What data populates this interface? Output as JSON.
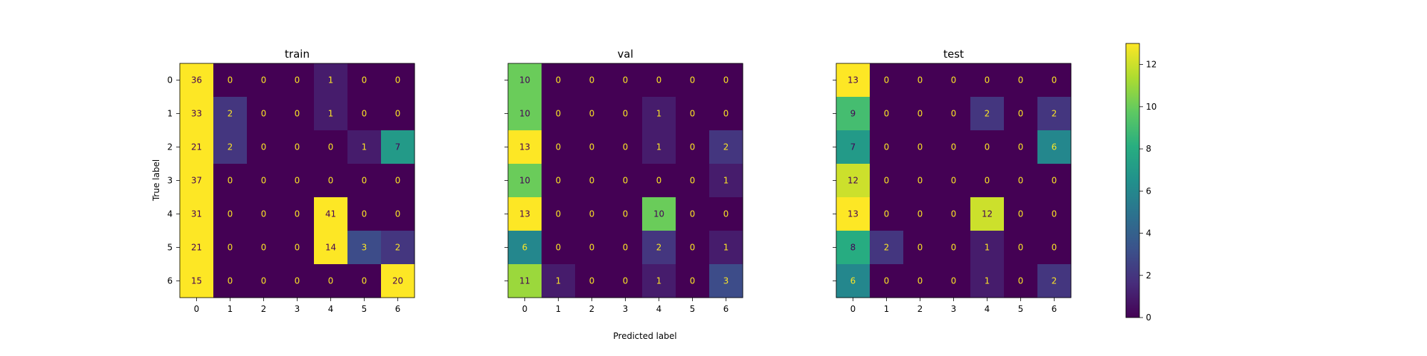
{
  "chart_data": {
    "type": "heatmap",
    "xlabel": "Predicted label",
    "ylabel": "True label",
    "class_labels": [
      "0",
      "1",
      "2",
      "3",
      "4",
      "5",
      "6"
    ],
    "colormap": "viridis",
    "colorbar": {
      "min": 0,
      "max": 13,
      "ticks": [
        0,
        2,
        4,
        6,
        8,
        10,
        12
      ]
    },
    "panels": [
      {
        "title": "train",
        "matrix": [
          [
            36,
            0,
            0,
            0,
            1,
            0,
            0
          ],
          [
            33,
            2,
            0,
            0,
            1,
            0,
            0
          ],
          [
            21,
            2,
            0,
            0,
            0,
            1,
            7
          ],
          [
            37,
            0,
            0,
            0,
            0,
            0,
            0
          ],
          [
            31,
            0,
            0,
            0,
            41,
            0,
            0
          ],
          [
            21,
            0,
            0,
            0,
            14,
            3,
            2
          ],
          [
            15,
            0,
            0,
            0,
            0,
            0,
            20
          ]
        ]
      },
      {
        "title": "val",
        "matrix": [
          [
            10,
            0,
            0,
            0,
            0,
            0,
            0
          ],
          [
            10,
            0,
            0,
            0,
            1,
            0,
            0
          ],
          [
            13,
            0,
            0,
            0,
            1,
            0,
            2
          ],
          [
            10,
            0,
            0,
            0,
            0,
            0,
            1
          ],
          [
            13,
            0,
            0,
            0,
            10,
            0,
            0
          ],
          [
            6,
            0,
            0,
            0,
            2,
            0,
            1
          ],
          [
            11,
            1,
            0,
            0,
            1,
            0,
            3
          ]
        ]
      },
      {
        "title": "test",
        "matrix": [
          [
            13,
            0,
            0,
            0,
            0,
            0,
            0
          ],
          [
            9,
            0,
            0,
            0,
            2,
            0,
            2
          ],
          [
            7,
            0,
            0,
            0,
            0,
            0,
            6
          ],
          [
            12,
            0,
            0,
            0,
            0,
            0,
            0
          ],
          [
            13,
            0,
            0,
            0,
            12,
            0,
            0
          ],
          [
            8,
            2,
            0,
            0,
            1,
            0,
            0
          ],
          [
            6,
            0,
            0,
            0,
            1,
            0,
            2
          ]
        ]
      }
    ]
  }
}
